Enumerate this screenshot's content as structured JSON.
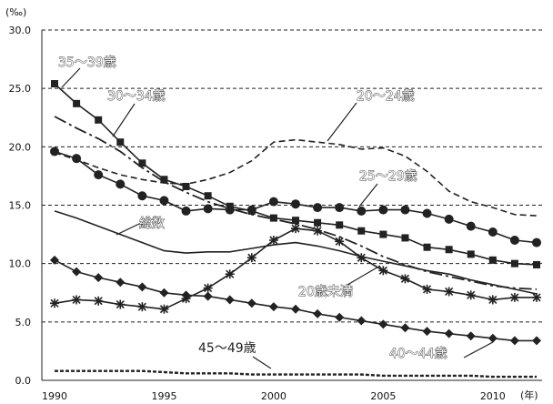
{
  "chart_data": {
    "type": "line",
    "y_unit": "(‰)",
    "x_unit": "(年)",
    "xlim": [
      1990,
      2012
    ],
    "ylim": [
      0,
      30
    ],
    "grid": "horizontal-dashed",
    "x_ticks": [
      1990,
      1995,
      2000,
      2005,
      2010
    ],
    "y_ticks": [
      "0.0",
      "5.0",
      "10.0",
      "15.0",
      "20.0",
      "25.0",
      "30.0"
    ],
    "x": [
      1990,
      1991,
      1992,
      1993,
      1994,
      1995,
      1996,
      1997,
      1998,
      1999,
      2000,
      2001,
      2002,
      2003,
      2004,
      2005,
      2006,
      2007,
      2008,
      2009,
      2010,
      2011,
      2012
    ],
    "series": [
      {
        "name": "35〜39歳",
        "style": "square-solid",
        "values": [
          25.4,
          23.7,
          22.3,
          20.4,
          18.6,
          17.2,
          16.6,
          15.8,
          14.9,
          14.5,
          13.9,
          13.7,
          13.5,
          13.3,
          12.8,
          12.5,
          12.2,
          11.4,
          11.2,
          10.8,
          10.3,
          10.0,
          9.9
        ]
      },
      {
        "name": "30〜34歳",
        "style": "dash-dot",
        "values": [
          22.6,
          21.6,
          20.7,
          19.6,
          18.2,
          17.0,
          16.1,
          15.3,
          14.7,
          14.2,
          13.8,
          13.4,
          12.9,
          12.3,
          11.5,
          10.6,
          9.9,
          9.3,
          8.9,
          8.5,
          8.1,
          7.9,
          7.8
        ]
      },
      {
        "name": "20〜24歳",
        "style": "dashed",
        "values": [
          19.5,
          18.9,
          18.2,
          17.6,
          17.2,
          16.9,
          16.8,
          17.2,
          17.8,
          18.8,
          20.4,
          20.6,
          20.4,
          20.2,
          19.8,
          19.9,
          19.2,
          17.9,
          16.2,
          15.3,
          14.8,
          14.2,
          14.1
        ]
      },
      {
        "name": "25〜29歳",
        "style": "circle-solid",
        "values": [
          19.6,
          19.0,
          17.6,
          16.8,
          15.8,
          15.4,
          14.5,
          14.7,
          14.6,
          14.6,
          15.3,
          15.1,
          14.8,
          14.8,
          14.5,
          14.6,
          14.6,
          14.3,
          13.8,
          13.2,
          12.7,
          12.0,
          11.8
        ]
      },
      {
        "name": "総数",
        "style": "solid",
        "values": [
          14.5,
          13.9,
          13.2,
          12.5,
          11.8,
          11.1,
          10.9,
          11.0,
          11.0,
          11.3,
          11.6,
          11.8,
          11.5,
          11.1,
          10.6,
          10.2,
          9.8,
          9.4,
          9.1,
          8.6,
          8.2,
          7.8,
          7.4
        ]
      },
      {
        "name": "20歳未満",
        "style": "asterisk-solid",
        "values": [
          6.6,
          6.9,
          6.8,
          6.5,
          6.3,
          6.1,
          7.0,
          7.9,
          9.1,
          10.5,
          12.0,
          13.0,
          12.8,
          11.9,
          10.5,
          9.4,
          8.7,
          7.8,
          7.6,
          7.3,
          6.9,
          7.1,
          7.1
        ]
      },
      {
        "name": "40〜44歳",
        "style": "diamond-solid",
        "values": [
          10.3,
          9.3,
          8.8,
          8.4,
          8.0,
          7.5,
          7.3,
          7.2,
          6.9,
          6.6,
          6.3,
          6.1,
          5.7,
          5.4,
          5.1,
          4.8,
          4.5,
          4.2,
          4.0,
          3.8,
          3.6,
          3.4,
          3.4
        ]
      },
      {
        "name": "45〜49歳",
        "style": "short-dash",
        "values": [
          0.8,
          0.8,
          0.8,
          0.8,
          0.8,
          0.7,
          0.6,
          0.6,
          0.6,
          0.5,
          0.5,
          0.5,
          0.5,
          0.5,
          0.5,
          0.4,
          0.4,
          0.4,
          0.4,
          0.4,
          0.3,
          0.3,
          0.3
        ]
      }
    ]
  }
}
